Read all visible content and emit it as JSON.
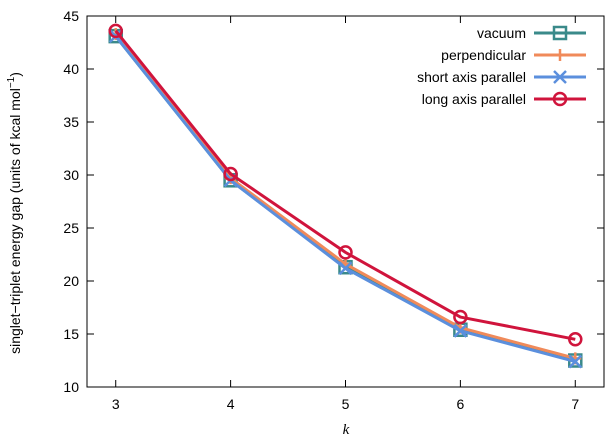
{
  "chart_data": {
    "type": "line",
    "title": "",
    "xlabel": "k",
    "ylabel": "singlet−triplet energy gap (units of kcal mol",
    "ylabel_sup": "−1",
    "ylabel_tail": ")",
    "x": [
      3,
      4,
      5,
      6,
      7
    ],
    "xlim": [
      2.75,
      7.25
    ],
    "ylim": [
      10,
      45
    ],
    "xticks": [
      "3",
      "4",
      "5",
      "6",
      "7"
    ],
    "yticks": [
      "10",
      "15",
      "20",
      "25",
      "30",
      "35",
      "40",
      "45"
    ],
    "grid": false,
    "legend_position": "top-right",
    "series": [
      {
        "name": "vacuum",
        "color": "#3a8a8a",
        "marker": "square",
        "values": [
          43.1,
          29.5,
          21.3,
          15.4,
          12.5
        ]
      },
      {
        "name": "perpendicular",
        "color": "#f08a5a",
        "marker": "plus",
        "values": [
          43.3,
          29.7,
          21.6,
          15.6,
          12.7
        ]
      },
      {
        "name": "short axis parallel",
        "color": "#5b8fdd",
        "marker": "cross",
        "values": [
          43.1,
          29.5,
          21.2,
          15.3,
          12.4
        ]
      },
      {
        "name": "long axis parallel",
        "color": "#d0143c",
        "marker": "circle",
        "values": [
          43.6,
          30.1,
          22.7,
          16.6,
          14.5
        ]
      }
    ]
  }
}
